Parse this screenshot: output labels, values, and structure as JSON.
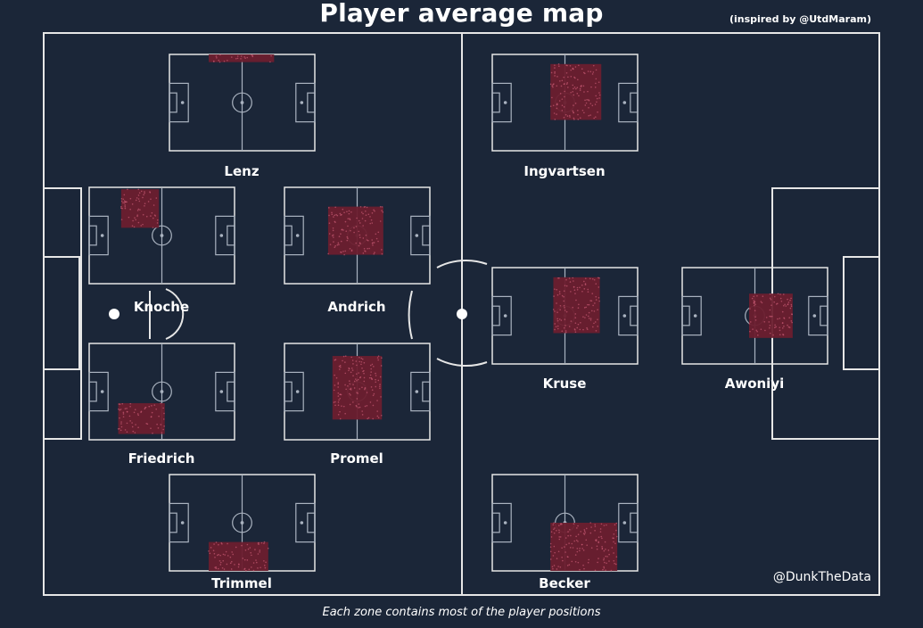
{
  "title": "Player average map",
  "inspired_by": "(inspired by @UtdMaram)",
  "credit": "@DunkTheData",
  "footnote": "Each zone contains most of the player positions",
  "colors": {
    "background": "#1b2638",
    "lines": "#e6e6e6",
    "zone_fill": "#6b1d2e",
    "zone_dots": "#d0607a",
    "ball": "#ffffff"
  },
  "chart_data": {
    "type": "scatter",
    "title": "Player average map",
    "grid": false,
    "legend": "none",
    "players": [
      {
        "name": "Lenz",
        "zone": {
          "x": [
            27,
            72
          ],
          "y": [
            92,
            100
          ]
        }
      },
      {
        "name": "Ingvartsen",
        "zone": {
          "x": [
            40,
            75
          ],
          "y": [
            32,
            90
          ]
        }
      },
      {
        "name": "Knoche",
        "zone": {
          "x": [
            22,
            48
          ],
          "y": [
            58,
            98
          ]
        }
      },
      {
        "name": "Andrich",
        "zone": {
          "x": [
            30,
            68
          ],
          "y": [
            30,
            80
          ]
        }
      },
      {
        "name": "Kruse",
        "zone": {
          "x": [
            42,
            74
          ],
          "y": [
            32,
            90
          ]
        }
      },
      {
        "name": "Awoniyi",
        "zone": {
          "x": [
            46,
            76
          ],
          "y": [
            27,
            73
          ]
        }
      },
      {
        "name": "Friedrich",
        "zone": {
          "x": [
            20,
            52
          ],
          "y": [
            6,
            38
          ]
        }
      },
      {
        "name": "Promel",
        "zone": {
          "x": [
            33,
            67
          ],
          "y": [
            21,
            87
          ]
        }
      },
      {
        "name": "Trimmel",
        "zone": {
          "x": [
            27,
            68
          ],
          "y": [
            0,
            30
          ]
        }
      },
      {
        "name": "Becker",
        "zone": {
          "x": [
            40,
            86
          ],
          "y": [
            0,
            50
          ]
        }
      }
    ]
  }
}
